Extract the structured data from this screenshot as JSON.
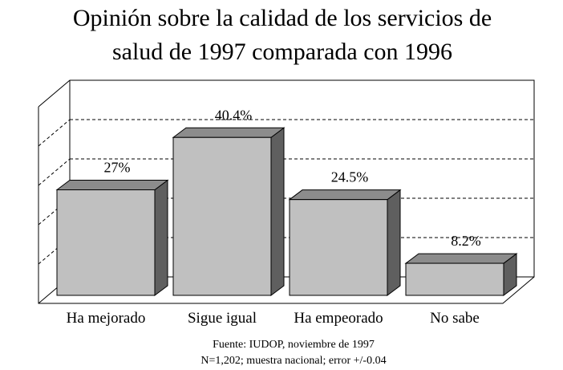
{
  "chart_data": {
    "type": "bar3d",
    "title": "Opinión sobre la calidad de los servicios de salud de 1997 comparada con 1996",
    "categories": [
      "Ha mejorado",
      "Sigue igual",
      "Ha empeorado",
      "No sabe"
    ],
    "values": [
      27,
      40.4,
      24.5,
      8.2
    ],
    "value_labels": [
      "27%",
      "40.4%",
      "24.5%",
      "8.2%"
    ],
    "colors": {
      "front": "#c0c0c0",
      "top": "#8c8c8c",
      "side": "#5f5f5f"
    },
    "ylim": [
      0,
      50
    ],
    "yticks": [
      10,
      20,
      30,
      40
    ],
    "grid": true,
    "source": "Fuente: IUDOP, noviembre de 1997",
    "note": "N=1,202; muestra nacional; error +/-0.04"
  }
}
